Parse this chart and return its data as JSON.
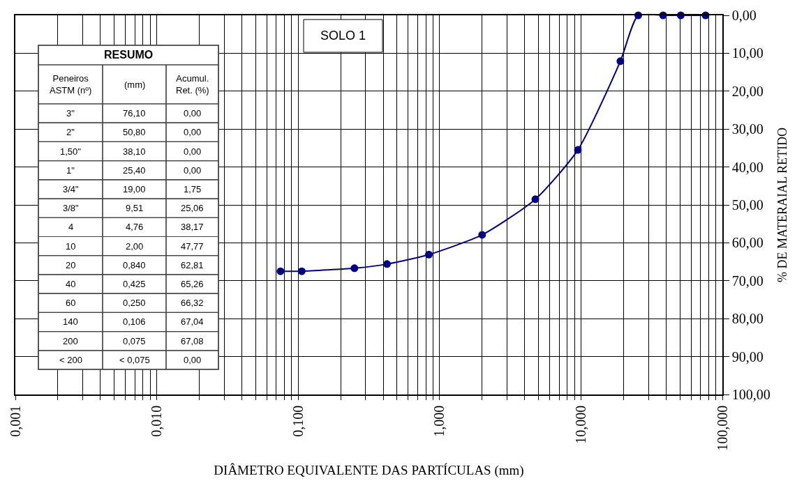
{
  "chart_data": {
    "type": "line",
    "xlabel": "DIÂMETRO EQUIVALENTE DAS PARTÍCULAS (mm)",
    "ylabel": "% DE MATERAIAL RETIDO",
    "x": [
      76.1,
      50.8,
      38.1,
      25.4,
      19.0,
      9.51,
      4.76,
      2.0,
      0.84,
      0.425,
      0.25,
      0.106,
      0.075
    ],
    "series": [
      {
        "color": "#000080",
        "values": [
          0,
          0,
          0,
          0,
          12.1,
          35.5,
          48.5,
          57.9,
          63.1,
          65.6,
          66.7,
          67.5,
          67.5
        ]
      }
    ],
    "log": "x",
    "marker": "circle",
    "line_style": "solid",
    "grid": true,
    "xlim": [
      0.001,
      100
    ],
    "xticks": [
      {
        "value": 0.001,
        "label": "0,001"
      },
      {
        "value": 0.002,
        "label": null
      },
      {
        "value": 0.003,
        "label": null
      },
      {
        "value": 0.004,
        "label": null
      },
      {
        "value": 0.005,
        "label": null
      },
      {
        "value": 0.006,
        "label": null
      },
      {
        "value": 0.007,
        "label": null
      },
      {
        "value": 0.008,
        "label": null
      },
      {
        "value": 0.009,
        "label": null
      },
      {
        "value": 0.01,
        "label": "0,010"
      },
      {
        "value": 0.02,
        "label": null
      },
      {
        "value": 0.03,
        "label": null
      },
      {
        "value": 0.04,
        "label": null
      },
      {
        "value": 0.05,
        "label": null
      },
      {
        "value": 0.06,
        "label": null
      },
      {
        "value": 0.07,
        "label": null
      },
      {
        "value": 0.08,
        "label": null
      },
      {
        "value": 0.09,
        "label": null
      },
      {
        "value": 0.1,
        "label": "0,100"
      },
      {
        "value": 0.2,
        "label": null
      },
      {
        "value": 0.3,
        "label": null
      },
      {
        "value": 0.4,
        "label": null
      },
      {
        "value": 0.5,
        "label": null
      },
      {
        "value": 0.6,
        "label": null
      },
      {
        "value": 0.7,
        "label": null
      },
      {
        "value": 0.8,
        "label": null
      },
      {
        "value": 0.9,
        "label": null
      },
      {
        "value": 1,
        "label": "1,000"
      },
      {
        "value": 2,
        "label": null
      },
      {
        "value": 3,
        "label": null
      },
      {
        "value": 4,
        "label": null
      },
      {
        "value": 5,
        "label": null
      },
      {
        "value": 6,
        "label": null
      },
      {
        "value": 7,
        "label": null
      },
      {
        "value": 8,
        "label": null
      },
      {
        "value": 9,
        "label": null
      },
      {
        "value": 10,
        "label": "10,000"
      },
      {
        "value": 20,
        "label": null
      },
      {
        "value": 30,
        "label": null
      },
      {
        "value": 40,
        "label": null
      },
      {
        "value": 50,
        "label": null
      },
      {
        "value": 60,
        "label": null
      },
      {
        "value": 70,
        "label": null
      },
      {
        "value": 80,
        "label": null
      },
      {
        "value": 90,
        "label": null
      },
      {
        "value": 100,
        "label": "100,000"
      }
    ],
    "ylim": [
      100,
      0
    ],
    "yticks": [
      {
        "value": 0,
        "label": "0,00"
      },
      {
        "value": 10,
        "label": "10,00"
      },
      {
        "value": 20,
        "label": "20,00"
      },
      {
        "value": 30,
        "label": "30,00"
      },
      {
        "value": 40,
        "label": "40,00"
      },
      {
        "value": 50,
        "label": "50,00"
      },
      {
        "value": 60,
        "label": "60,00"
      },
      {
        "value": 70,
        "label": "70,00"
      },
      {
        "value": 80,
        "label": "80,00"
      },
      {
        "value": 90,
        "label": "90,00"
      },
      {
        "value": 100,
        "label": "100,00"
      }
    ],
    "annotations": [
      "SOLO 1",
      "RESUMO",
      "Peneiros ASTM (nº)",
      "(mm)",
      "Acumul. Ret. (%)",
      "3\"",
      "76,10",
      "0,00",
      "2\"",
      "50,80",
      "0,00",
      "1,50\"",
      "38,10",
      "0,00",
      "1\"",
      "25,40",
      "0,00",
      "3/4\"",
      "19,00",
      "1,75",
      "3/8\"",
      "9,51",
      "25,06",
      "4",
      "4,76",
      "38,17",
      "10",
      "2,00",
      "47,77",
      "20",
      "0,840",
      "62,81",
      "40",
      "0,425",
      "65,26",
      "60",
      "0,250",
      "66,32",
      "140",
      "0,106",
      "67,04",
      "200",
      "0,075",
      "67,08",
      "< 200",
      "< 0,075",
      "0,00"
    ]
  }
}
